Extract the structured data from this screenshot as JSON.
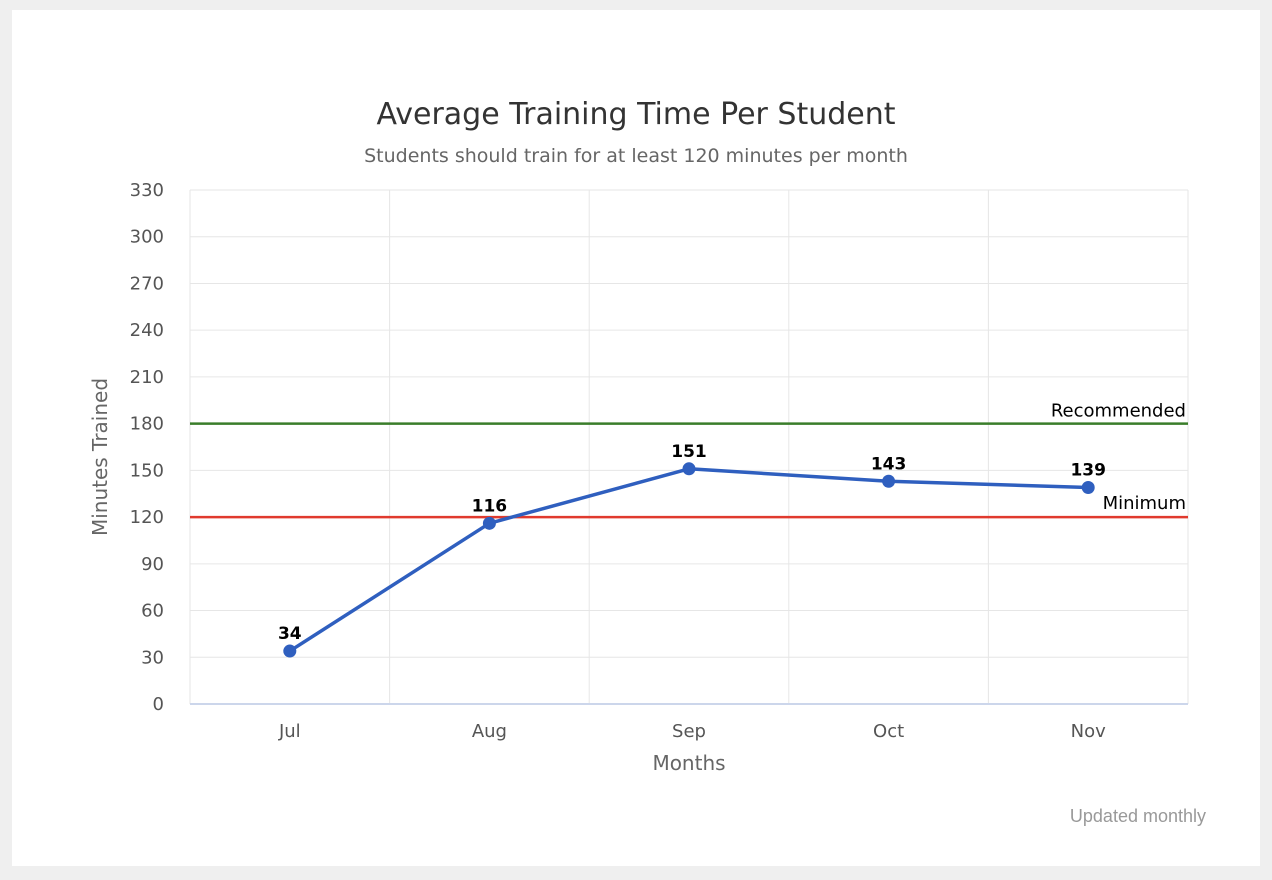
{
  "chart_data": {
    "type": "line",
    "title": "Average Training Time Per Student",
    "subtitle": "Students should train for at least 120 minutes per month",
    "xlabel": "Months",
    "ylabel": "Minutes Trained",
    "categories": [
      "Jul",
      "Aug",
      "Sep",
      "Oct",
      "Nov"
    ],
    "series": [
      {
        "values": [
          34,
          116,
          151,
          143,
          139
        ],
        "color": "#2f5fbf"
      }
    ],
    "ylim": [
      0,
      330
    ],
    "yticks": [
      0,
      30,
      60,
      90,
      120,
      150,
      180,
      210,
      240,
      270,
      300,
      330
    ],
    "plot_lines": [
      {
        "label": "Recommended",
        "value": 180,
        "color": "#3a7d2a"
      },
      {
        "label": "Minimum",
        "value": 120,
        "color": "#e03a2e"
      }
    ],
    "data_labels": true,
    "grid": true,
    "credit": "Updated monthly"
  }
}
